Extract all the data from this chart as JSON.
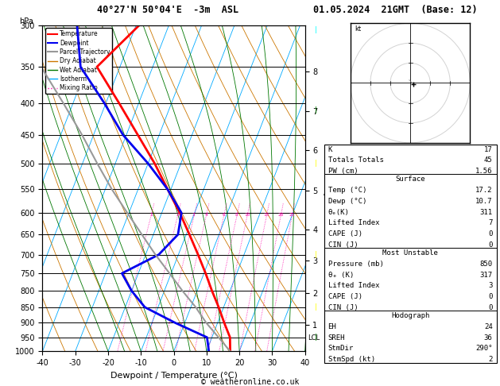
{
  "title_left": "40°27'N 50°04'E  -3m  ASL",
  "title_right": "01.05.2024  21GMT  (Base: 12)",
  "xlabel": "Dewpoint / Temperature (°C)",
  "copyright": "© weatheronline.co.uk",
  "pressure_levels": [
    300,
    350,
    400,
    450,
    500,
    550,
    600,
    650,
    700,
    750,
    800,
    850,
    900,
    950,
    1000
  ],
  "km_levels": [
    8,
    7,
    6,
    5,
    4,
    3,
    2,
    1
  ],
  "km_pressures": [
    356,
    412,
    476,
    553,
    638,
    715,
    806,
    907
  ],
  "temp_color": "#ff0000",
  "dewp_color": "#0000ee",
  "parcel_color": "#999999",
  "dry_adiabat_color": "#cc7700",
  "wet_adiabat_color": "#007700",
  "isotherm_color": "#00aaff",
  "mixing_color": "#ff00aa",
  "temp_data": {
    "pressure": [
      1000,
      950,
      900,
      850,
      800,
      750,
      700,
      650,
      600,
      550,
      500,
      450,
      400,
      350,
      300
    ],
    "temp": [
      17.2,
      15.5,
      12.0,
      8.5,
      4.5,
      0.5,
      -4.0,
      -9.0,
      -14.5,
      -21.0,
      -28.0,
      -36.5,
      -46.0,
      -57.0,
      -49.0
    ]
  },
  "dewp_data": {
    "pressure": [
      1000,
      950,
      900,
      850,
      800,
      750,
      700,
      650,
      600,
      550,
      500,
      450,
      400,
      350,
      300
    ],
    "temp": [
      10.7,
      8.5,
      -3.0,
      -14.0,
      -20.0,
      -25.0,
      -16.0,
      -12.5,
      -14.0,
      -21.0,
      -30.0,
      -41.0,
      -50.5,
      -62.0,
      -68.0
    ]
  },
  "parcel_data": {
    "pressure": [
      1000,
      950,
      900,
      850,
      800,
      750,
      700,
      650,
      600,
      550,
      500,
      450,
      400,
      350,
      300
    ],
    "temp": [
      17.2,
      12.0,
      6.5,
      1.5,
      -4.5,
      -10.5,
      -17.0,
      -23.5,
      -30.5,
      -38.0,
      -45.5,
      -53.5,
      -63.0,
      -74.0,
      -86.0
    ]
  },
  "mixing_ratios": [
    1,
    2,
    3,
    4,
    6,
    8,
    10,
    15,
    20,
    25
  ],
  "lcl_pressure": 952,
  "info_panel": {
    "K": 17,
    "Totals_Totals": 45,
    "PW_cm": "1.56",
    "Surface_Temp": "17.2",
    "Surface_Dewp": "10.7",
    "Surface_theta_e": 311,
    "Surface_LI": 7,
    "Surface_CAPE": 0,
    "Surface_CIN": 0,
    "MU_Pressure": 850,
    "MU_theta_e": 317,
    "MU_LI": 3,
    "MU_CAPE": 0,
    "MU_CIN": 0,
    "EH": 24,
    "SREH": 36,
    "StmDir": "290°",
    "StmSpd": 2
  },
  "xmin": -40,
  "xmax": 40,
  "pmin": 300,
  "pmax": 1000,
  "skew_factor": 32
}
